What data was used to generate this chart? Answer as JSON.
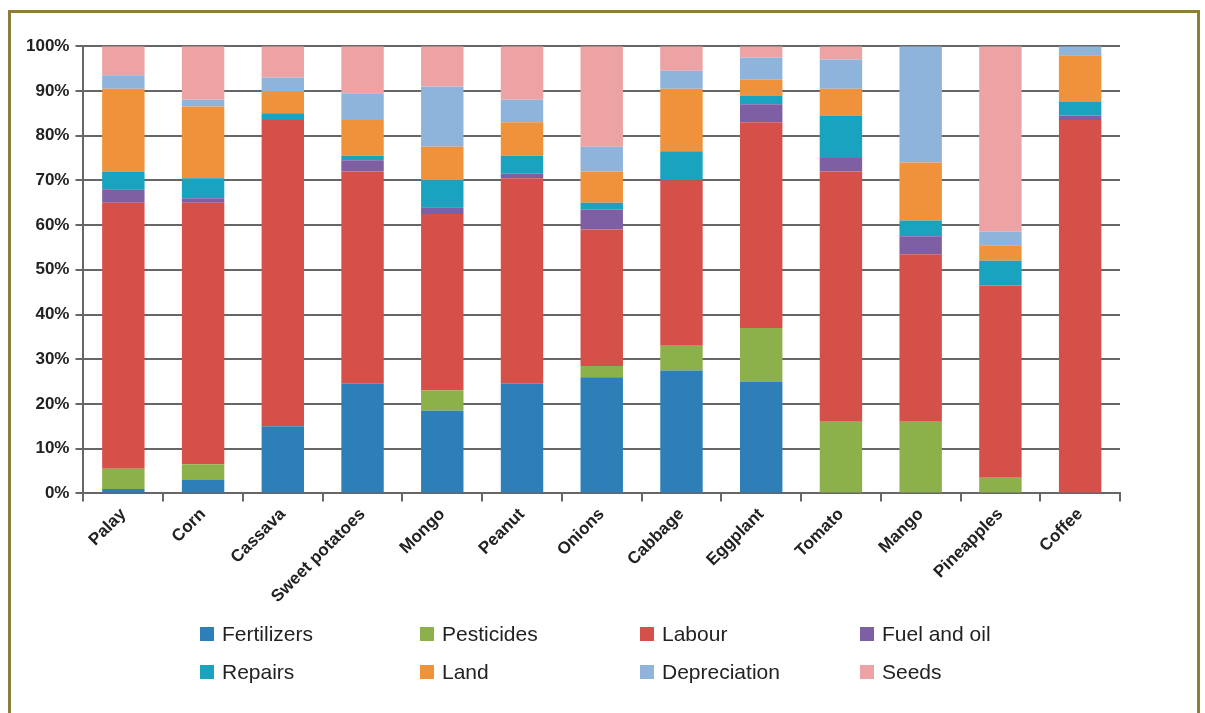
{
  "chart_data": {
    "type": "bar",
    "stacked": true,
    "categories": [
      "Palay",
      "Corn",
      "Cassava",
      "Sweet potatoes",
      "Mongo",
      "Peanut",
      "Onions",
      "Cabbage",
      "Eggplant",
      "Tomato",
      "Mango",
      "Pineapples",
      "Coffee"
    ],
    "series": [
      {
        "name": "Fertilizers",
        "color": "#2e7fb8",
        "values": [
          1,
          3,
          15,
          24.5,
          18.5,
          24.5,
          26,
          27.5,
          25,
          0,
          0,
          0,
          0
        ]
      },
      {
        "name": "Pesticides",
        "color": "#8cb04a",
        "values": [
          4.5,
          3.5,
          0,
          0,
          4.5,
          0,
          2.5,
          5.5,
          12,
          16,
          16,
          3.5,
          0
        ]
      },
      {
        "name": "Labour",
        "color": "#d6504a",
        "values": [
          59.5,
          58.5,
          68.5,
          47.5,
          39.5,
          46,
          30.5,
          37,
          46,
          56,
          37.5,
          43,
          83.5
        ]
      },
      {
        "name": "Fuel and oil",
        "color": "#7e5fa3",
        "values": [
          3,
          1,
          0,
          2.5,
          1.5,
          1,
          4.5,
          0,
          4,
          3,
          4,
          0,
          1
        ]
      },
      {
        "name": "Repairs",
        "color": "#1aa3bf",
        "values": [
          4,
          4.5,
          1.5,
          1,
          6,
          4,
          1.5,
          6.5,
          2,
          9.5,
          3.5,
          5.5,
          3
        ]
      },
      {
        "name": "Land",
        "color": "#f0923c",
        "values": [
          18.5,
          16,
          5,
          8,
          7.5,
          7.5,
          7,
          14,
          3.5,
          6,
          13,
          3.5,
          10.5
        ]
      },
      {
        "name": "Depreciation",
        "color": "#8fb4dc",
        "values": [
          3,
          1.5,
          3,
          6,
          13.5,
          5,
          5.5,
          4,
          5,
          6.5,
          26,
          3,
          2
        ]
      },
      {
        "name": "Seeds",
        "color": "#eda3a3",
        "values": [
          6.5,
          12,
          7,
          10.5,
          9,
          12,
          22.5,
          5.5,
          2.5,
          3,
          0,
          41.5,
          0
        ]
      }
    ],
    "ylim": [
      0,
      100
    ],
    "yticks": [
      {
        "value": 0,
        "label": "0%"
      },
      {
        "value": 10,
        "label": "10%"
      },
      {
        "value": 20,
        "label": "20%"
      },
      {
        "value": 30,
        "label": "30%"
      },
      {
        "value": 40,
        "label": "40%"
      },
      {
        "value": 50,
        "label": "50%"
      },
      {
        "value": 60,
        "label": "60%"
      },
      {
        "value": 70,
        "label": "70%"
      },
      {
        "value": 80,
        "label": "80%"
      },
      {
        "value": 90,
        "label": "90%"
      },
      {
        "value": 100,
        "label": "100%"
      }
    ],
    "grid": "y",
    "legend": "bottom"
  }
}
